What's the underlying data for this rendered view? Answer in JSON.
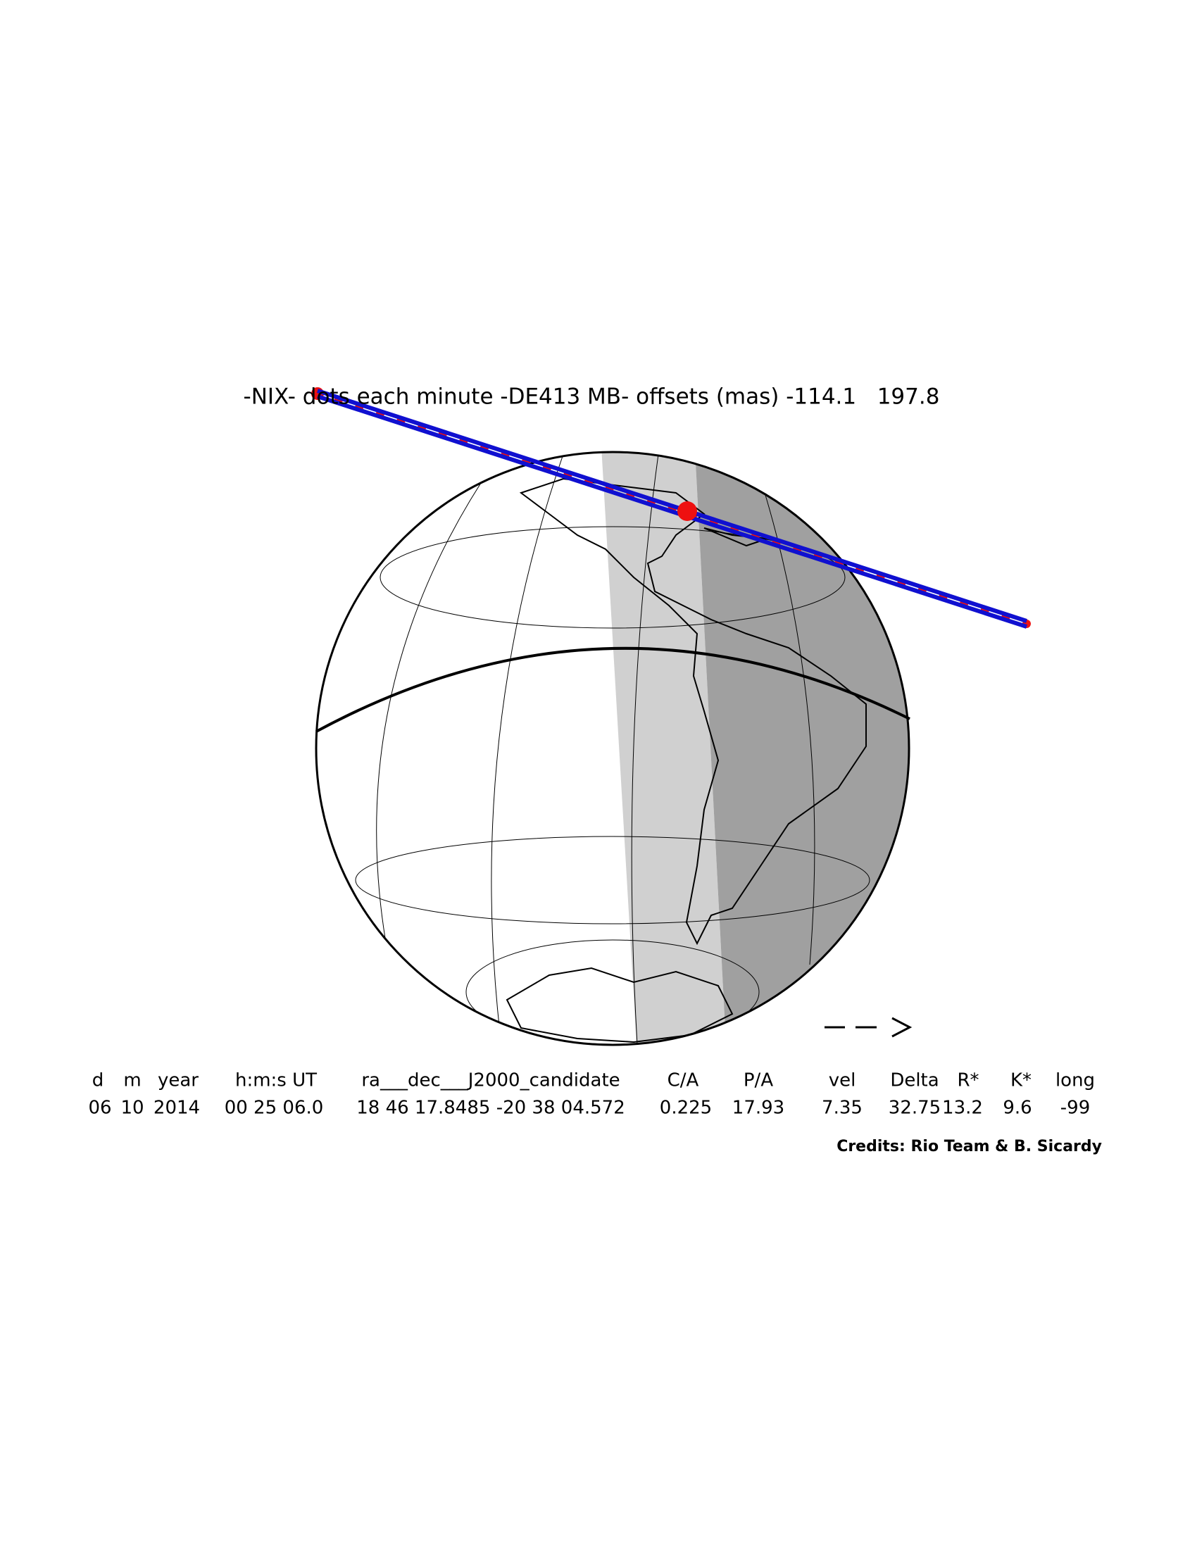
{
  "header": {
    "title": "-NIX- dots each minute -DE413 MB- offsets (mas) -114.1   197.8"
  },
  "table": {
    "headers": [
      "d",
      "m",
      "year",
      "h:m:s UT",
      "ra___dec___J2000_candidate",
      "C/A",
      "P/A",
      "vel",
      "Delta",
      "R*",
      "K*",
      "long"
    ],
    "values": [
      "06",
      "10",
      "2014",
      "00 25 06.0",
      "18 46 17.8485 -20 38 04.572",
      "0.225",
      "17.93",
      "7.35",
      "32.75",
      "13.2",
      "9.6",
      "-99"
    ]
  },
  "credits": "Credits: Rio Team & B. Sicardy"
}
